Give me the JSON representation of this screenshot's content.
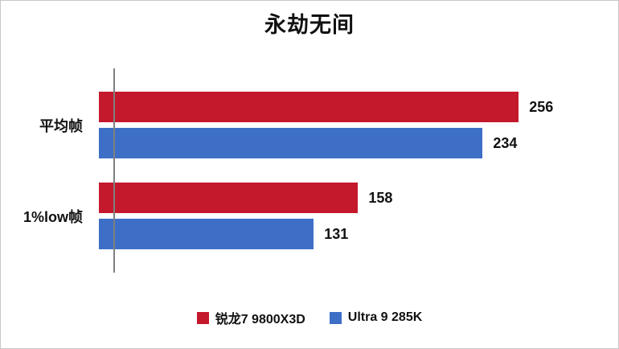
{
  "chart_data": {
    "type": "bar",
    "orientation": "horizontal",
    "title": "永劫无间",
    "categories": [
      "平均帧",
      "1%low帧"
    ],
    "series": [
      {
        "name": "锐龙7 9800X3D",
        "color": "#c4182d",
        "values": [
          256,
          158
        ]
      },
      {
        "name": "Ultra 9 285K",
        "color": "#3d6fc7",
        "values": [
          234,
          131
        ]
      }
    ],
    "xlim": [
      0,
      300
    ],
    "grid": false,
    "legend_position": "bottom",
    "value_labels": true
  }
}
